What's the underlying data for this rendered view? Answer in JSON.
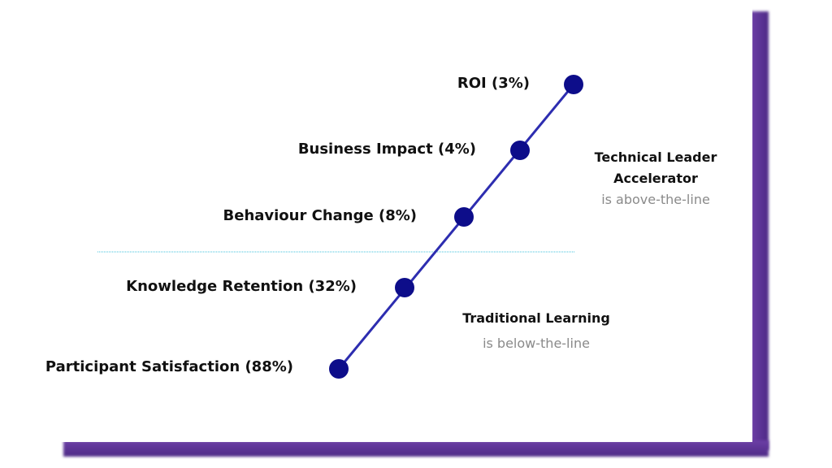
{
  "levels": [
    {
      "label": "Participant Satisfaction (88%)"
    },
    {
      "label": "Knowledge Retention (32%)"
    },
    {
      "label": "Behaviour Change (8%)"
    },
    {
      "label": "Business Impact (4%)"
    },
    {
      "label": "ROI (3%)"
    }
  ],
  "above_note": {
    "line1": "Technical Leader",
    "line2": "Accelerator",
    "line3": "is above-the-line"
  },
  "below_note": {
    "line1": "Traditional Learning",
    "line2": "is below-the-line"
  },
  "colors": {
    "line": "#2d2db0",
    "dot": "#0d0d8a",
    "threshold": "#9fe0ee",
    "frame": "#5a2f93"
  }
}
